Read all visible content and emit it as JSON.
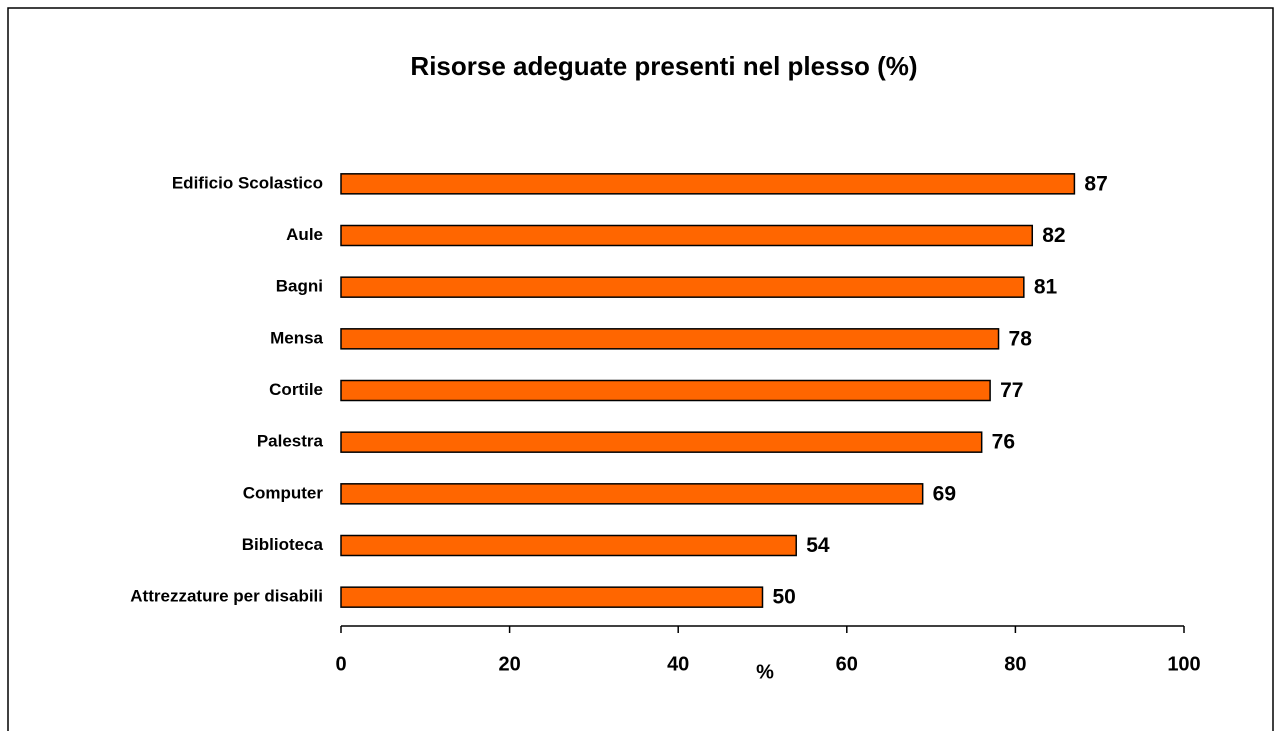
{
  "chart_data": {
    "type": "barh",
    "title": "Risorse adeguate presenti nel plesso (%)",
    "xlabel": "%",
    "categories": [
      "Edificio Scolastico",
      "Aule",
      "Bagni",
      "Mensa",
      "Cortile",
      "Palestra",
      "Computer",
      "Biblioteca",
      "Attrezzature per disabili"
    ],
    "values": [
      87,
      82,
      81,
      78,
      77,
      76,
      69,
      54,
      50
    ],
    "color": "#ff6600",
    "xlim": [
      0,
      100
    ],
    "xticks": [
      0,
      20,
      40,
      60,
      80,
      100
    ],
    "grid": false
  }
}
